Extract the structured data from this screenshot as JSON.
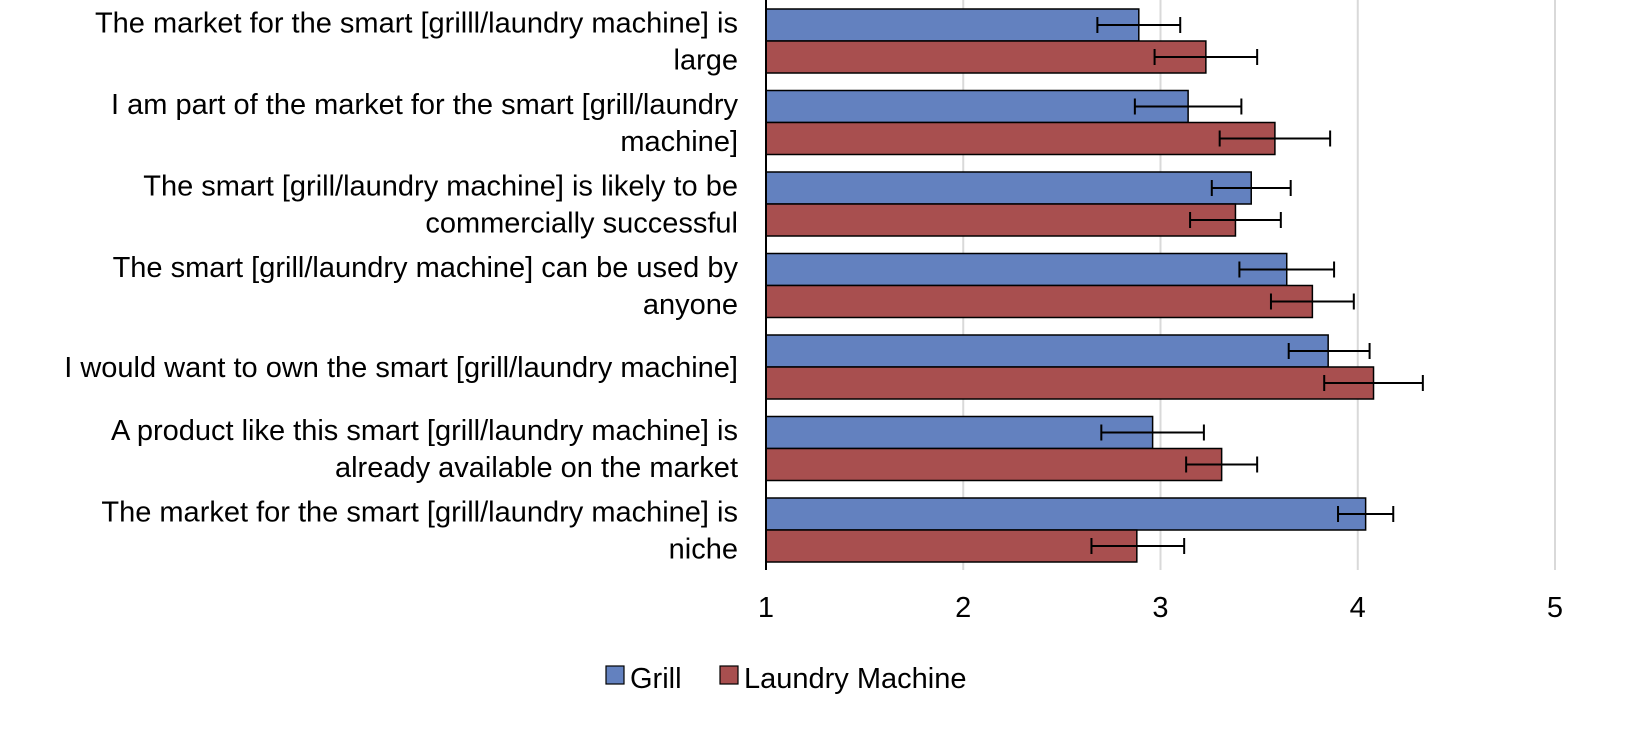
{
  "chart_data": {
    "type": "bar",
    "orientation": "horizontal",
    "categories": [
      [
        "The market for the smart [grilll/laundry machine] is",
        "large"
      ],
      [
        "I am part of the market for the smart [grill/laundry",
        "machine]"
      ],
      [
        "The smart [grill/laundry machine] is likely to be",
        "commercially successful"
      ],
      [
        "The smart [grill/laundry machine] can be used by",
        "anyone"
      ],
      [
        "I would want to own the smart [grill/laundry machine]"
      ],
      [
        "A product like this smart [grill/laundry machine] is",
        "already available on the market"
      ],
      [
        "The market for the smart [grill/laundry machine] is",
        "niche"
      ]
    ],
    "series": [
      {
        "name": "Grill",
        "color": "#6381bf",
        "values": [
          2.89,
          3.14,
          3.46,
          3.64,
          3.85,
          2.96,
          4.04
        ],
        "error_low": [
          2.68,
          2.87,
          3.26,
          3.4,
          3.65,
          2.7,
          3.9
        ],
        "error_high": [
          3.1,
          3.41,
          3.66,
          3.88,
          4.06,
          3.22,
          4.18
        ]
      },
      {
        "name": "Laundry Machine",
        "color": "#a84f4f",
        "values": [
          3.23,
          3.58,
          3.38,
          3.77,
          4.08,
          3.31,
          2.88
        ],
        "error_low": [
          2.97,
          3.3,
          3.15,
          3.56,
          3.83,
          3.13,
          2.65
        ],
        "error_high": [
          3.49,
          3.86,
          3.61,
          3.98,
          4.33,
          3.49,
          3.12
        ]
      }
    ],
    "xlim": [
      1,
      5
    ],
    "xticks": [
      "1",
      "2",
      "3",
      "4",
      "5"
    ],
    "grid": true,
    "legend_position": "bottom"
  }
}
